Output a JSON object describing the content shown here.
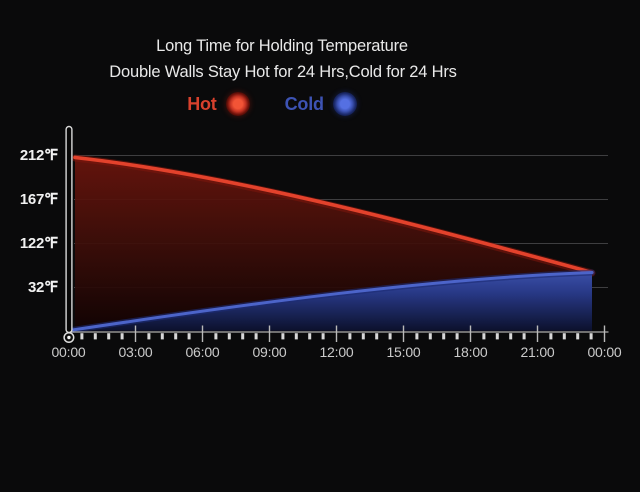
{
  "title": {
    "line1": "Long Time for Holding Temperature",
    "line2": "Double Walls Stay Hot for 24 Hrs,Cold for 24 Hrs"
  },
  "legend": {
    "hot": {
      "label": "Hot",
      "color": "#d8412d",
      "marker_color": "#e8442e"
    },
    "cold": {
      "label": "Cold",
      "color": "#3d53b4",
      "marker_color": "#4a63d0"
    }
  },
  "chart_data": {
    "type": "area",
    "title": "Long Time for Holding Temperature",
    "subtitle": "Double Walls Stay Hot for 24 Hrs,Cold for 24 Hrs",
    "categories": [
      "00:00",
      "03:00",
      "06:00",
      "09:00",
      "12:00",
      "15:00",
      "18:00",
      "21:00",
      "00:00"
    ],
    "series": [
      {
        "name": "Hot",
        "unit": "℉",
        "color": "#e3422c",
        "values": [
          212,
          197,
          180,
          161,
          141,
          123,
          98,
          80,
          64
        ]
      },
      {
        "name": "Cold",
        "unit": "℉",
        "color": "#4c64c9",
        "values": [
          32,
          36,
          41,
          46,
          50,
          54,
          58,
          61,
          64
        ]
      }
    ],
    "yticks": [
      "212℉",
      "167℉",
      "122℉",
      "32℉"
    ],
    "xlabel": "",
    "ylabel": "",
    "grid": true,
    "legend_position": "top",
    "minor_ticks_per_interval": 4,
    "axis_note": "stylized non-linear temperature axis; both series converge near 64℉ just before 24h",
    "colors": {
      "background": "#0a0a0b",
      "gridline": "#3e3e40",
      "axis": "#adadad",
      "hot_line": "#e3422c",
      "hot_fill_top": "#6f150d",
      "cold_line": "#4c64c9",
      "cold_fill_top": "#4158b8"
    }
  }
}
